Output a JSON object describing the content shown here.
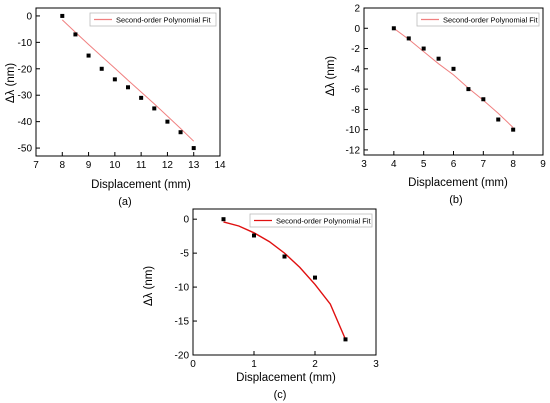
{
  "chart_data": [
    {
      "panel": "(a)",
      "type": "scatter",
      "xlabel": "Displacement (mm)",
      "ylabel": "Δλ (nm)",
      "xlim": [
        7,
        14
      ],
      "ylim": [
        -53,
        3
      ],
      "xticks": [
        7,
        8,
        9,
        10,
        11,
        12,
        13,
        14
      ],
      "yticks": [
        0,
        -10,
        -20,
        -30,
        -40,
        -50
      ],
      "grid": false,
      "legend_position": "top-right",
      "fit_color": "#f08080",
      "series": [
        {
          "name": "",
          "kind": "points",
          "x": [
            8,
            8.5,
            9,
            9.5,
            10,
            10.5,
            11,
            11.5,
            12,
            12.5,
            13
          ],
          "y": [
            0,
            -7,
            -15,
            -20,
            -24,
            -27,
            -31,
            -35,
            -40,
            -44,
            -50
          ]
        },
        {
          "name": "Second-order Polynomial Fit",
          "kind": "fit",
          "x": [
            8,
            8.5,
            9,
            9.5,
            10,
            10.5,
            11,
            11.5,
            12,
            12.5,
            13
          ],
          "y": [
            -1.5,
            -6.2,
            -10.8,
            -15.3,
            -19.8,
            -24.3,
            -28.8,
            -33.3,
            -37.9,
            -42.6,
            -47.4
          ]
        }
      ]
    },
    {
      "panel": "(b)",
      "type": "scatter",
      "xlabel": "Displacement (mm)",
      "ylabel": "Δλ (nm)",
      "xlim": [
        3,
        9
      ],
      "ylim": [
        -12.5,
        2
      ],
      "xticks": [
        3,
        4,
        5,
        6,
        7,
        8,
        9
      ],
      "yticks": [
        2,
        0,
        -2,
        -4,
        -6,
        -8,
        -10,
        -12
      ],
      "grid": false,
      "legend_position": "top-right",
      "fit_color": "#f08080",
      "series": [
        {
          "name": "",
          "kind": "points",
          "x": [
            4,
            4.5,
            5,
            5.5,
            6,
            6.5,
            7,
            7.5,
            8
          ],
          "y": [
            0,
            -1,
            -2,
            -3,
            -4,
            -6,
            -7,
            -9,
            -10
          ]
        },
        {
          "name": "Second-order Polynomial Fit",
          "kind": "fit",
          "x": [
            4,
            4.5,
            5,
            5.5,
            6,
            6.5,
            7,
            7.5,
            8
          ],
          "y": [
            0,
            -1.1,
            -2.3,
            -3.5,
            -4.6,
            -5.9,
            -7.1,
            -8.4,
            -9.8
          ]
        }
      ]
    },
    {
      "panel": "(c)",
      "type": "scatter",
      "xlabel": "Displacement (mm)",
      "ylabel": "Δλ (nm)",
      "xlim": [
        0,
        3
      ],
      "ylim": [
        -20,
        1.5
      ],
      "xticks": [
        0,
        1,
        2,
        3
      ],
      "yticks": [
        0,
        -5,
        -10,
        -15,
        -20
      ],
      "grid": false,
      "legend_position": "top-right",
      "fit_color": "#e01010",
      "series": [
        {
          "name": "",
          "kind": "points",
          "x": [
            0.5,
            1.0,
            1.5,
            2.0,
            2.5
          ],
          "y": [
            0,
            -2.4,
            -5.5,
            -8.6,
            -17.7
          ]
        },
        {
          "name": "Second-order Polynomial Fit",
          "kind": "fit",
          "x": [
            0.5,
            0.75,
            1.0,
            1.25,
            1.5,
            1.75,
            2.0,
            2.25,
            2.5
          ],
          "y": [
            -0.4,
            -1.0,
            -2.0,
            -3.3,
            -5.0,
            -7.1,
            -9.6,
            -12.5,
            -17.7
          ]
        }
      ]
    }
  ]
}
